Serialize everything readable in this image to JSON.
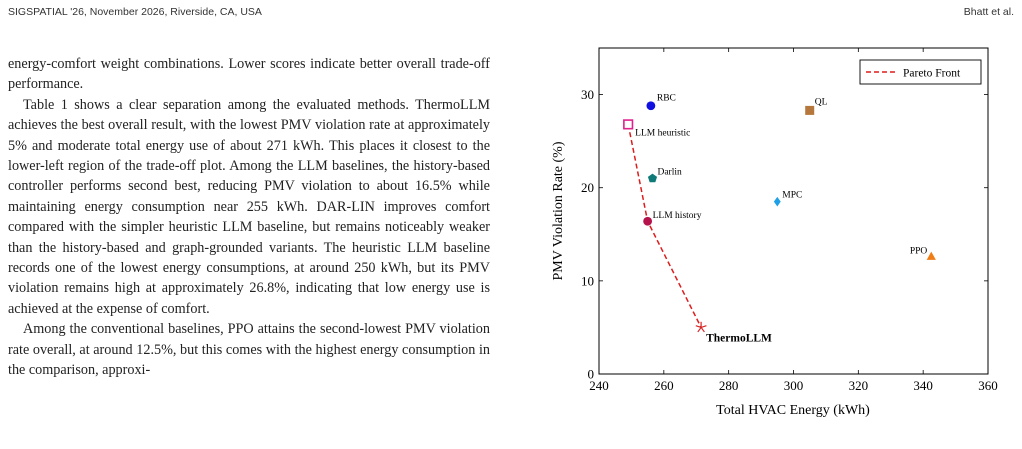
{
  "header": {
    "left": "SIGSPATIAL '26, November 2026, Riverside, CA, USA",
    "right": "Bhatt et al."
  },
  "body": {
    "paragraphs": [
      "energy-comfort weight combinations. Lower scores indicate better overall trade-off performance.",
      "Table 1 shows a clear separation among the evaluated methods. ThermoLLM achieves the best overall result, with the lowest PMV violation rate at approximately 5% and moderate total energy use of about 271 kWh. This places it closest to the lower-left region of the trade-off plot. Among the LLM baselines, the history-based controller performs second best, reducing PMV violation to about 16.5% while maintaining energy consumption near 255 kWh. DAR-LIN improves comfort compared with the simpler heuristic LLM baseline, but remains noticeably weaker than the history-based and graph-grounded variants. The heuristic LLM baseline records one of the lowest energy consumptions, at around 250 kWh, but its PMV violation remains high at approximately 26.8%, indicating that low energy use is achieved at the expense of comfort.",
      "Among the conventional baselines, PPO attains the second-lowest PMV violation rate overall, at around 12.5%, but this comes with the highest energy consumption in the comparison, approxi-"
    ]
  },
  "chart_data": {
    "type": "scatter",
    "xlabel": "Total HVAC Energy (kWh)",
    "ylabel": "PMV Violation Rate (%)",
    "xlim": [
      240,
      360
    ],
    "ylim": [
      0,
      35
    ],
    "xticks": [
      "240",
      "260",
      "280",
      "300",
      "320",
      "340",
      "360"
    ],
    "yticks": [
      "0",
      "10",
      "20",
      "30"
    ],
    "legend": {
      "label": "Pareto Front",
      "placement": "top-right"
    },
    "points": [
      {
        "label": "RBC",
        "x": 256,
        "y": 28.8,
        "marker": "circle",
        "color": "#1010e0"
      },
      {
        "label": "QL",
        "x": 305,
        "y": 28.3,
        "marker": "square",
        "color": "#b5773c"
      },
      {
        "label": "LLM heuristic",
        "x": 249,
        "y": 26.8,
        "marker": "open-square",
        "color": "#e0208c"
      },
      {
        "label": "Darlin",
        "x": 256.5,
        "y": 21.0,
        "marker": "pentagon",
        "color": "#0f7a78"
      },
      {
        "label": "MPC",
        "x": 295,
        "y": 18.5,
        "marker": "diamond",
        "color": "#1ea0e6"
      },
      {
        "label": "LLM history",
        "x": 255,
        "y": 16.4,
        "marker": "circle",
        "color": "#b5124b"
      },
      {
        "label": "PPO",
        "x": 342.5,
        "y": 12.6,
        "marker": "triangle",
        "color": "#f07d16"
      },
      {
        "label": "ThermoLLM",
        "x": 271.5,
        "y": 5.0,
        "marker": "star",
        "color": "#d82626"
      }
    ],
    "pareto_front": [
      [
        249,
        26.8
      ],
      [
        255,
        16.4
      ],
      [
        271.5,
        5.0
      ]
    ],
    "pareto_color": "#dd1c1c"
  }
}
